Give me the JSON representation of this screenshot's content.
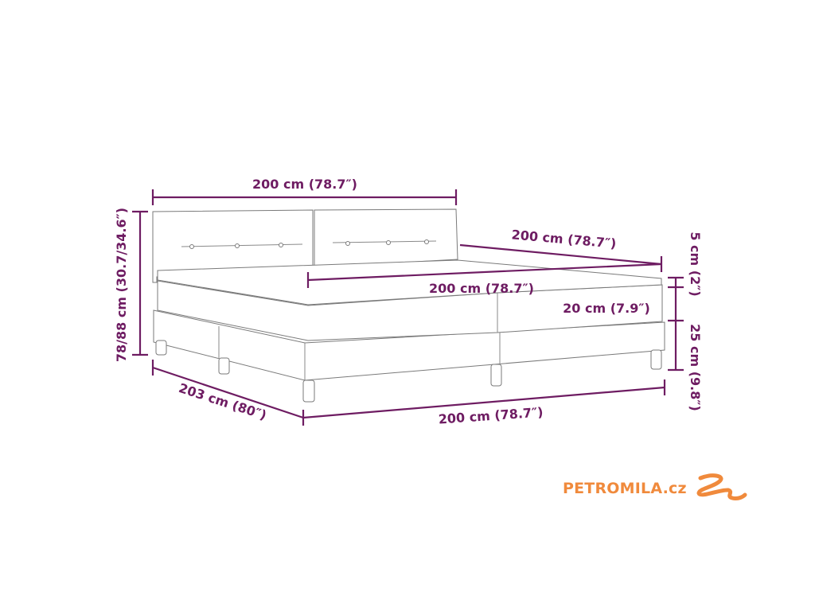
{
  "diagram": {
    "headboard_width": "200 cm (78.7″)",
    "total_height": "78/88 cm (30.7/34.6″)",
    "back_length": "200 cm (78.7″)",
    "mattress_width": "200 cm (78.7″)",
    "topper_height": "5 cm (2″)",
    "mattress_height": "20 cm (7.9″)",
    "base_height": "25 cm (9.8″)",
    "total_length": "203 cm (80″)",
    "front_width": "200 cm (78.7″)"
  },
  "colors": {
    "dimension": "#6e1c62",
    "logo": "#f08a3c"
  },
  "logo": {
    "text": "PETROMILA.cz",
    "icon": "swoosh-icon"
  }
}
